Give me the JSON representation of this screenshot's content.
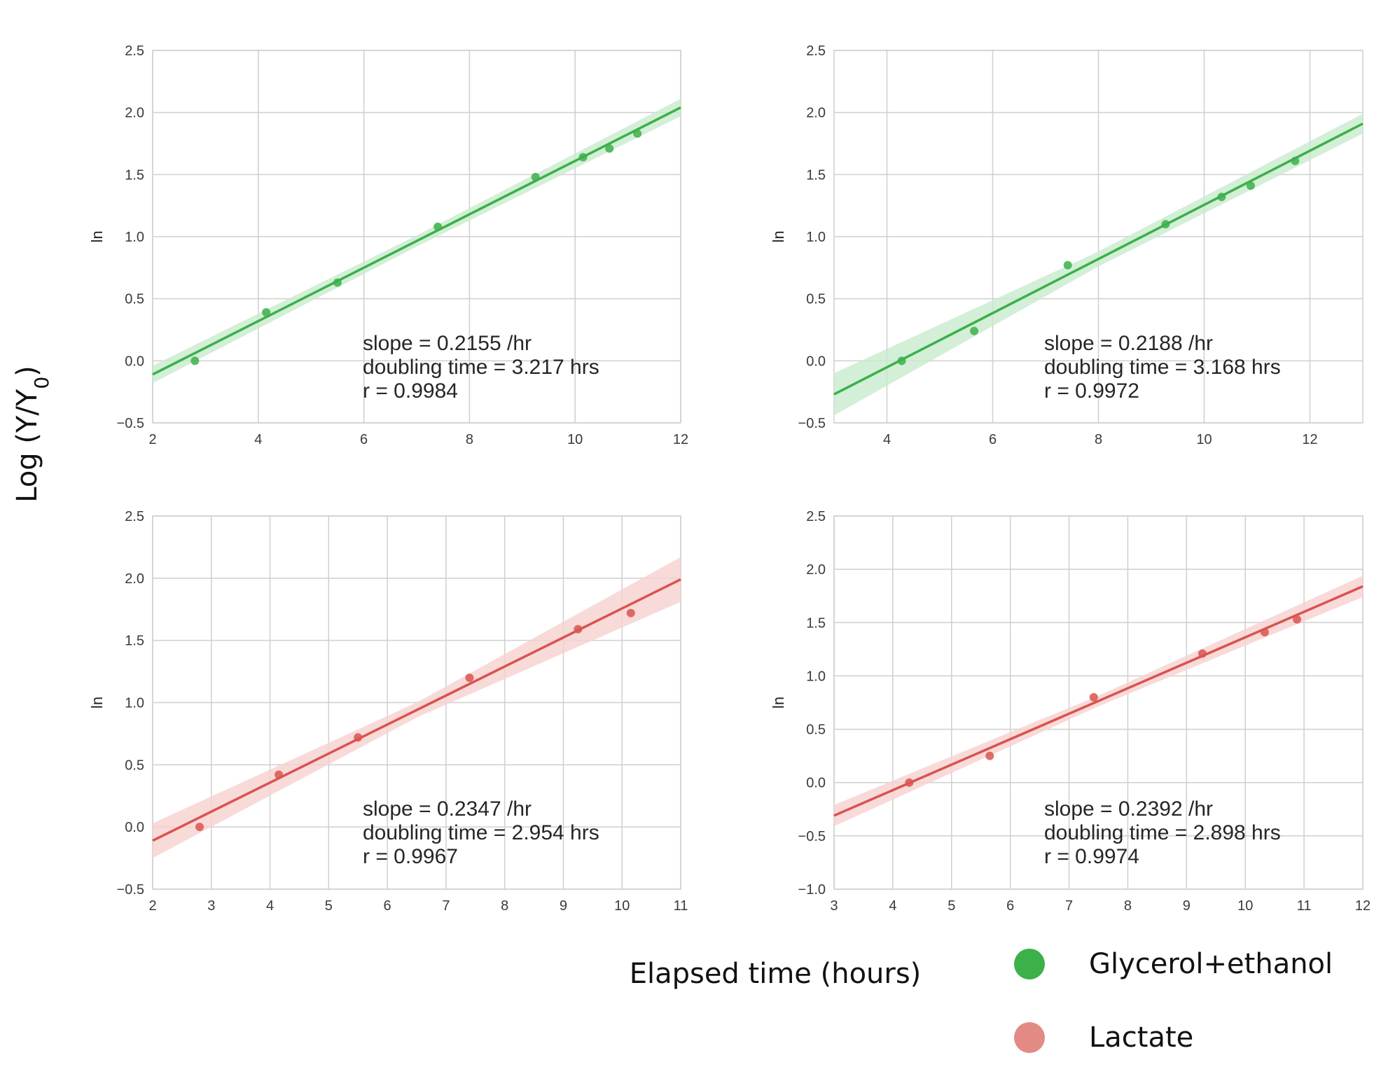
{
  "figure": {
    "ylabel": "Log (Y/Y",
    "ylabel_sub": "0",
    "ylabel_close": ")",
    "xlabel": "Elapsed time (hours)"
  },
  "legend": {
    "placement": "bottom-right",
    "items": [
      {
        "label": "Glycerol+ethanol",
        "color": "#3cb04a"
      },
      {
        "label": "Lactate",
        "color": "#e38a84"
      }
    ]
  },
  "chart_data": [
    {
      "type": "scatter",
      "ylabel": "ln",
      "xlim": [
        2,
        12
      ],
      "ylim": [
        -0.5,
        2.5
      ],
      "xticks": [
        "2",
        "4",
        "6",
        "8",
        "10",
        "12"
      ],
      "yticks": [
        "−0.5",
        "0.0",
        "0.5",
        "1.0",
        "1.5",
        "2.0",
        "2.5"
      ],
      "color": "#3cb04a",
      "band_color": "#c8ebcd",
      "series": [
        {
          "name": "Glycerol+ethanol",
          "x": [
            2.8,
            4.15,
            5.5,
            7.4,
            9.25,
            10.15,
            10.65,
            11.18
          ],
          "y": [
            0.0,
            0.39,
            0.63,
            1.08,
            1.48,
            1.64,
            1.71,
            1.83
          ]
        }
      ],
      "fit": {
        "x": [
          2,
          12
        ],
        "y": [
          -0.11,
          2.04
        ],
        "band": [
          0.07,
          0.045,
          0.07
        ]
      },
      "annotation": [
        "slope = 0.2155 /hr",
        "doubling time = 3.217 hrs",
        "r = 0.9984"
      ],
      "grid": true
    },
    {
      "type": "scatter",
      "ylabel": "ln",
      "xlim": [
        3,
        13
      ],
      "ylim": [
        -0.5,
        2.5
      ],
      "xticks": [
        "4",
        "6",
        "8",
        "10",
        "12"
      ],
      "yticks": [
        "−0.5",
        "0.0",
        "0.5",
        "1.0",
        "1.5",
        "2.0",
        "2.5"
      ],
      "color": "#3cb04a",
      "band_color": "#c8ebcd",
      "series": [
        {
          "name": "Glycerol+ethanol",
          "x": [
            4.28,
            5.65,
            7.42,
            9.27,
            10.33,
            10.88,
            11.72
          ],
          "y": [
            0.0,
            0.24,
            0.77,
            1.1,
            1.32,
            1.41,
            1.61
          ]
        }
      ],
      "fit": {
        "x": [
          3,
          13
        ],
        "y": [
          -0.27,
          1.91
        ],
        "band": [
          0.17,
          0.06,
          0.08
        ]
      },
      "annotation": [
        "slope = 0.2188 /hr",
        "doubling time = 3.168 hrs",
        "r = 0.9972"
      ],
      "grid": true
    },
    {
      "type": "scatter",
      "ylabel": "ln",
      "xlim": [
        2,
        11
      ],
      "ylim": [
        -0.5,
        2.5
      ],
      "xticks": [
        "2",
        "3",
        "4",
        "5",
        "6",
        "7",
        "8",
        "9",
        "10",
        "11"
      ],
      "yticks": [
        "−0.5",
        "0.0",
        "0.5",
        "1.0",
        "1.5",
        "2.0",
        "2.5"
      ],
      "color": "#d9534f",
      "band_color": "#f6d1cf",
      "series": [
        {
          "name": "Lactate",
          "x": [
            2.8,
            4.15,
            5.5,
            7.4,
            9.25,
            10.15
          ],
          "y": [
            0.0,
            0.42,
            0.72,
            1.2,
            1.59,
            1.72
          ]
        }
      ],
      "fit": {
        "x": [
          2,
          11
        ],
        "y": [
          -0.11,
          1.99
        ],
        "band": [
          0.14,
          0.06,
          0.18
        ]
      },
      "annotation": [
        "slope = 0.2347 /hr",
        "doubling time = 2.954 hrs",
        "r = 0.9967"
      ],
      "grid": true
    },
    {
      "type": "scatter",
      "ylabel": "ln",
      "xlim": [
        3,
        12
      ],
      "ylim": [
        -1.0,
        2.5
      ],
      "xticks": [
        "3",
        "4",
        "5",
        "6",
        "7",
        "8",
        "9",
        "10",
        "11",
        "12"
      ],
      "yticks": [
        "−1.0",
        "−0.5",
        "0.0",
        "0.5",
        "1.0",
        "1.5",
        "2.0",
        "2.5"
      ],
      "color": "#d9534f",
      "band_color": "#f6d1cf",
      "series": [
        {
          "name": "Lactate",
          "x": [
            4.28,
            5.65,
            7.42,
            9.27,
            10.33,
            10.88
          ],
          "y": [
            0.0,
            0.25,
            0.8,
            1.21,
            1.41,
            1.53
          ]
        }
      ],
      "fit": {
        "x": [
          3,
          12
        ],
        "y": [
          -0.31,
          1.84
        ],
        "band": [
          0.1,
          0.05,
          0.1
        ]
      },
      "annotation": [
        "slope = 0.2392 /hr",
        "doubling time = 2.898 hrs",
        "r = 0.9974"
      ],
      "grid": true
    }
  ]
}
